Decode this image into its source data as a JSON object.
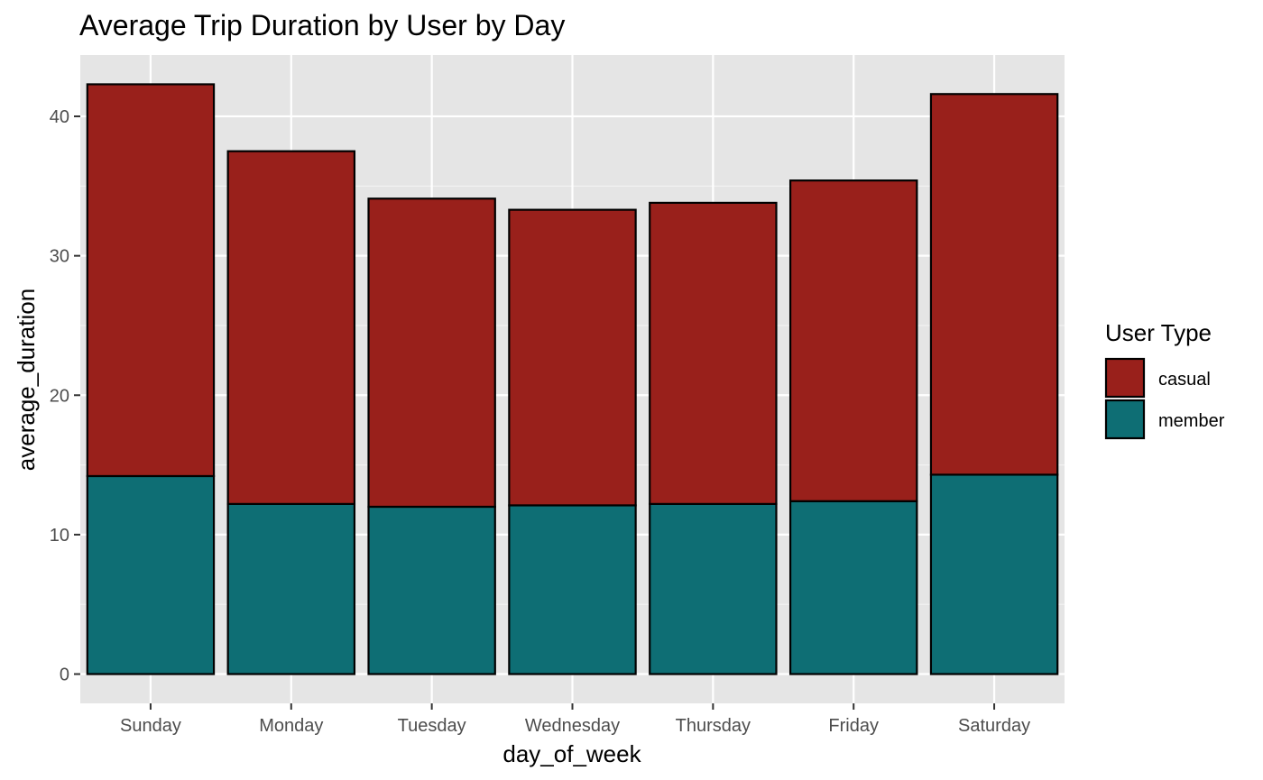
{
  "chart_data": {
    "type": "bar",
    "stacked": true,
    "title": "Average Trip Duration by User by Day",
    "xlabel": "day_of_week",
    "ylabel": "average_duration",
    "categories": [
      "Sunday",
      "Monday",
      "Tuesday",
      "Wednesday",
      "Thursday",
      "Friday",
      "Saturday"
    ],
    "series": [
      {
        "name": "member",
        "color": "#0e6e74",
        "values": [
          14.2,
          12.2,
          12.0,
          12.1,
          12.2,
          12.4,
          14.3
        ]
      },
      {
        "name": "casual",
        "color": "#99201b",
        "values": [
          28.1,
          25.3,
          22.1,
          21.2,
          21.6,
          23.0,
          27.3
        ]
      }
    ],
    "ylim": [
      -2.1,
      44.4
    ],
    "yticks": [
      0,
      10,
      20,
      30,
      40
    ],
    "grid": true,
    "panel_background": "#e5e5e5",
    "legend": {
      "title": "User Type",
      "placement": "right",
      "entries": [
        {
          "label": "casual",
          "color": "#99201b"
        },
        {
          "label": "member",
          "color": "#0e6e74"
        }
      ]
    }
  }
}
